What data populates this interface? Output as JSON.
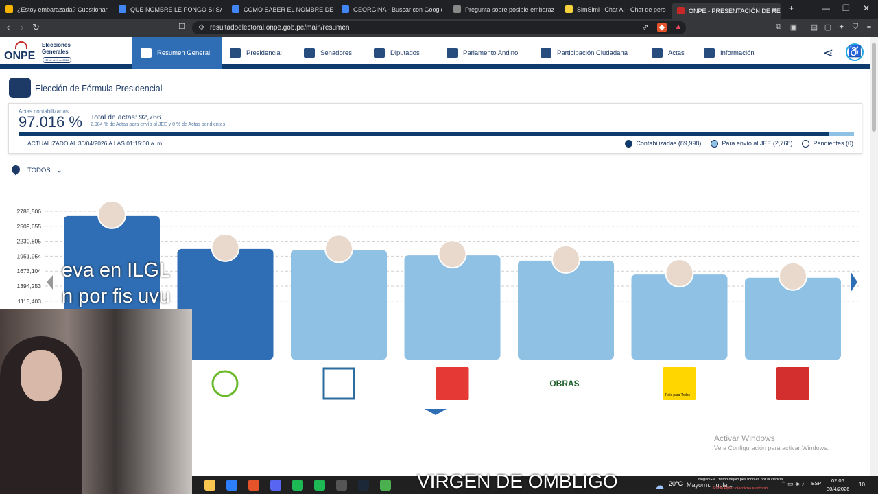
{
  "browser": {
    "tabs": [
      {
        "label": "¿Estoy embarazada? Cuestionario",
        "color": "#f4b400"
      },
      {
        "label": "QUE NOMBRE LE PONGO SI SALE M",
        "color": "#4285f4"
      },
      {
        "label": "COMO SABER EL NOMBRE DE SU PA",
        "color": "#4285f4"
      },
      {
        "label": "GEORGINA - Buscar con Google",
        "color": "#4285f4"
      },
      {
        "label": "Pregunta sobre posible embarazo y",
        "color": "#888888"
      },
      {
        "label": "SimSimi | Chat AI - Chat de personaje",
        "color": "#f6d23b"
      },
      {
        "label": "ONPE - PRESENTACIÓN DE RESU",
        "color": "#c62828"
      }
    ],
    "new_tab": "+",
    "url": "resultadoelectoral.onpe.gob.pe/main/resumen"
  },
  "site": {
    "logo_text": "ONPE",
    "logo_sub1": "Elecciones",
    "logo_sub2": "Generales",
    "logo_date": "12 de abril de 2026",
    "nav": [
      {
        "label": "Resumen General",
        "active": true
      },
      {
        "label": "Presidencial",
        "active": false
      },
      {
        "label": "Senadores",
        "active": false
      },
      {
        "label": "Diputados",
        "active": false
      },
      {
        "label": "Parlamento Andino",
        "active": false
      },
      {
        "label": "Participación Ciudadana",
        "active": false
      },
      {
        "label": "Actas",
        "active": false
      },
      {
        "label": "Información",
        "active": false
      }
    ]
  },
  "section_title": "Elección de Fórmula Presidencial",
  "summary": {
    "actas_label": "Actas contabilizadas",
    "actas_pct": "97.016 %",
    "total_label": "Total de actas: 92,766",
    "total_sub": "2.984 % de Actas para envío al JEE y 0 % de Actas pendientes",
    "progress": {
      "contabilizadas": 0.97016,
      "jee": 0.02984
    },
    "updated": "ACTUALIZADO AL 30/04/2026 A LAS 01:15:00 a. m.",
    "legend": [
      {
        "label": "Contabilizadas (89,998)",
        "color": "#0d3b6e"
      },
      {
        "label": "Para envío al JEE (2,768)",
        "color": "#8ec1e3"
      },
      {
        "label": "Pendientes (0)",
        "color": "#ffffff"
      }
    ]
  },
  "filter": {
    "label": "TODOS"
  },
  "chart_data": {
    "type": "bar",
    "y_ticks": [
      "2788,506",
      "2509,655",
      "2230,805",
      "1951,954",
      "1673,104",
      "1394,253",
      "1115,403"
    ],
    "values": [
      2700000,
      2080000,
      2060000,
      1960000,
      1860000,
      1600000,
      1540000
    ],
    "ylim": [
      0,
      2788506
    ],
    "highlight": [
      true,
      true,
      false,
      false,
      false,
      false,
      false
    ],
    "colors": {
      "highlight": "#2f6eb4",
      "normal": "#8ec1e3"
    }
  },
  "overlay": {
    "stream_text_1": "eva en ILGL",
    "stream_text_2": "n por fis uvu",
    "caption": "VIRGEN DE OMBLIGO",
    "party_logo_obras": "OBRAS",
    "party_logo_pais": "País para Todos"
  },
  "windows_watermark": {
    "line1": "Activar Windows",
    "line2": "Ve a Configuración para activar Windows."
  },
  "taskbar": {
    "weather": "20°C",
    "weather_sub": "Mayorm. nubla...",
    "chat1": "NeganGM : telmo dejalo pes todo es por la ciencia",
    "chat2": "Pablo Flyte : dieccicna a antonio",
    "lang": "ESP",
    "time": "02:06",
    "date": "30/4/2026",
    "notif": "10"
  }
}
